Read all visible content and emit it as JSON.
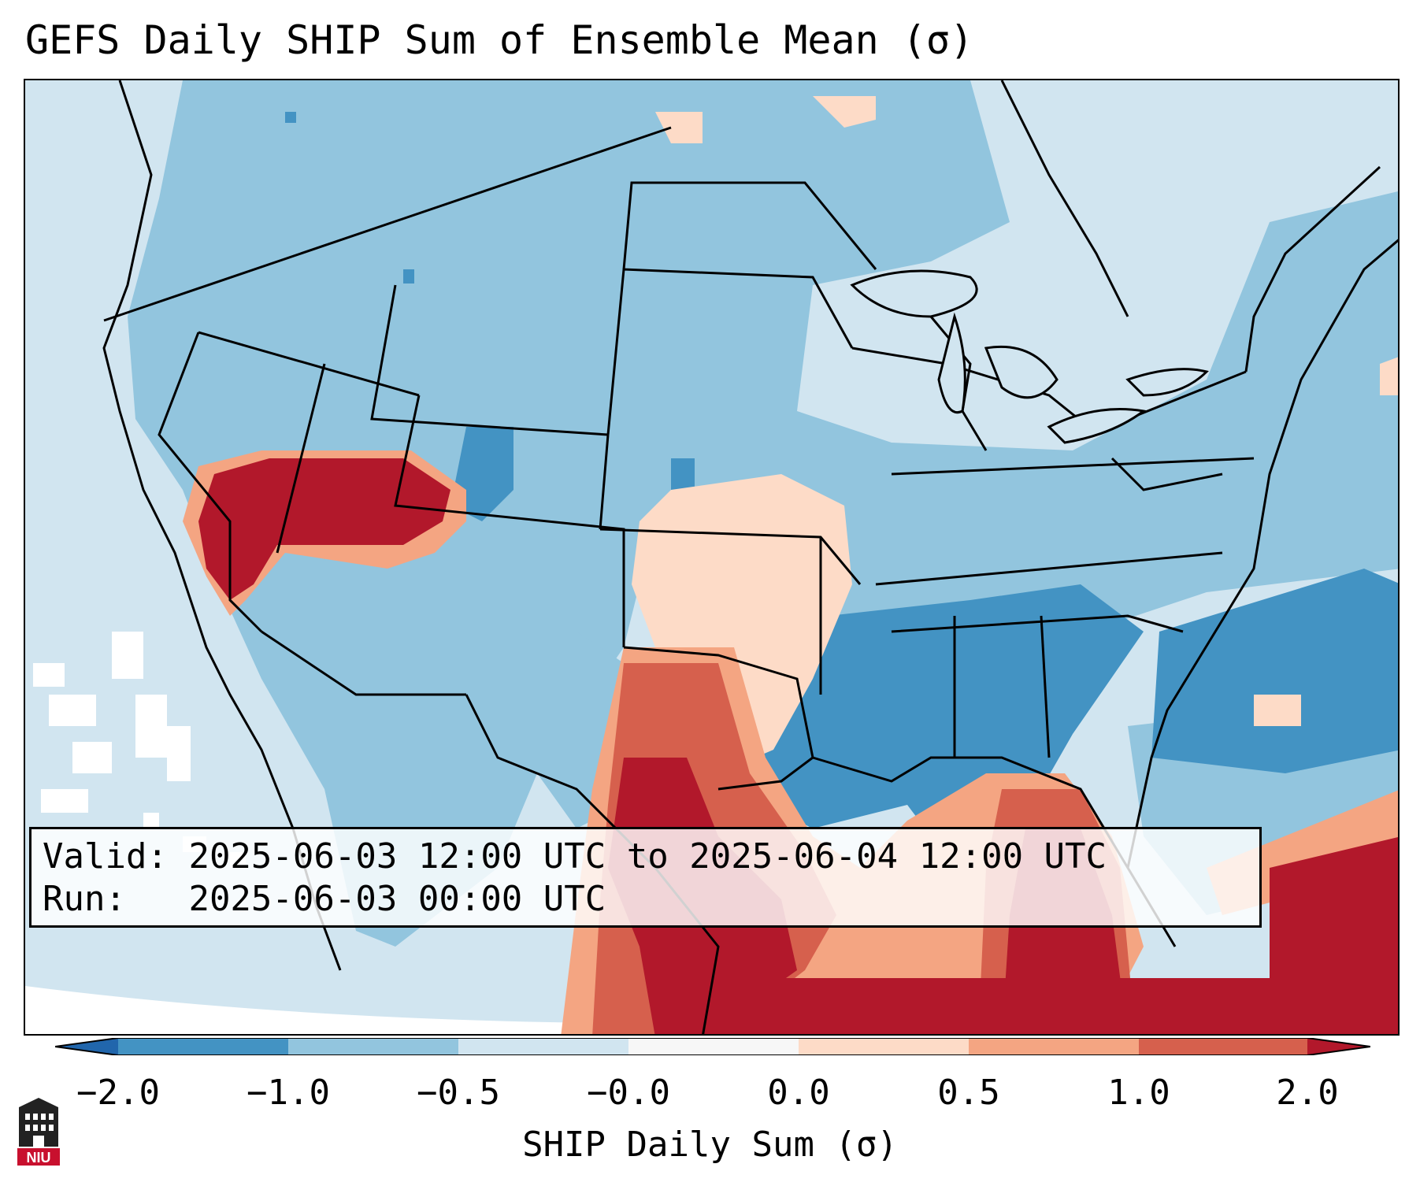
{
  "title": "GEFS Daily SHIP Sum of Ensemble Mean (σ)",
  "info": {
    "valid_label": "Valid:",
    "valid_value": "2025-06-03 12:00 UTC to 2025-06-04 12:00 UTC",
    "run_label": "Run:",
    "run_value": "2025-06-03 00:00 UTC"
  },
  "colorbar": {
    "label": "SHIP Daily Sum (σ)",
    "ticks": [
      "−2.0",
      "−1.0",
      "−0.5",
      "−0.0",
      "0.0",
      "0.5",
      "1.0",
      "2.0"
    ],
    "colors": {
      "extend_low": "#2166ac",
      "b1": "#4393c3",
      "b2": "#92c5de",
      "b3": "#d1e5f0",
      "b4": "#f7f7f7",
      "b5": "#fddbc7",
      "b6": "#f4a582",
      "b7": "#d6604d",
      "b8": "#b2182b",
      "extend_high": "#b2182b"
    }
  },
  "logo": {
    "text": "NIU",
    "color": "#c8102e"
  }
}
